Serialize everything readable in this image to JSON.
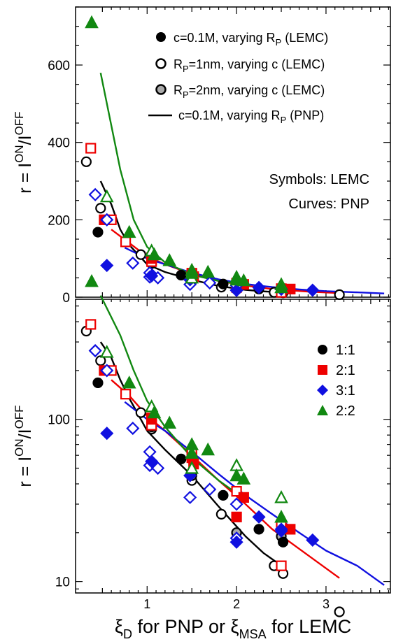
{
  "chart_data": [
    {
      "type": "scatter",
      "panel": "top",
      "yscale": "linear",
      "ylim": [
        0,
        750
      ],
      "xlim": [
        0.2,
        3.72
      ],
      "ylabel_parts": {
        "base": "r = I",
        "sup1": "ON",
        "slash": "/I",
        "sup2": "OFF"
      },
      "yticks": [
        0,
        200,
        400,
        600
      ],
      "ytick_labels": [
        "0",
        "200",
        "400",
        "600"
      ],
      "xticks": [
        1,
        2,
        3
      ],
      "legend_position": "top-right",
      "legend": [
        {
          "marker": "filled-circle",
          "parts": [
            "c=0.1M, varying R",
            "P",
            " (LEMC)"
          ]
        },
        {
          "marker": "open-circle",
          "parts": [
            "R",
            "P",
            "=1nm, varying c (LEMC)"
          ]
        },
        {
          "marker": "gray-circle",
          "parts": [
            "R",
            "P",
            "=2nm, varying c (LEMC)"
          ]
        },
        {
          "marker": "line",
          "parts": [
            "c=0.1M, varying R",
            "P",
            " (PNP)"
          ]
        }
      ],
      "annotations": [
        "Symbols: LEMC",
        "Curves: PNP"
      ]
    },
    {
      "type": "scatter",
      "panel": "bottom",
      "yscale": "log",
      "ylim": [
        8.5,
        550
      ],
      "xlim": [
        0.2,
        3.72
      ],
      "ylabel_parts": {
        "base": "r = I",
        "sup1": "ON",
        "slash": "/I",
        "sup2": "OFF"
      },
      "yticks": [
        10,
        100
      ],
      "ytick_labels": [
        "10",
        "100"
      ],
      "xticks": [
        1,
        2,
        3
      ],
      "xtick_labels": [
        "1",
        "2",
        "3"
      ],
      "xlabel_parts": {
        "a": "ξ",
        "a_sub": "D",
        "b": " for PNP or ξ",
        "b_sub": "MSA",
        "c": " for LEMC"
      },
      "legend_position": "top-right",
      "legend": [
        {
          "name": "1:1",
          "color": "#000000",
          "marker": "circle"
        },
        {
          "name": "2:1",
          "color": "#ee0000",
          "marker": "square"
        },
        {
          "name": "3:1",
          "color": "#1010e0",
          "marker": "diamond"
        },
        {
          "name": "2:2",
          "color": "#118811",
          "marker": "triangle"
        }
      ]
    }
  ],
  "series": [
    {
      "color": "#000000",
      "marker": "circle",
      "curve": [
        [
          0.48,
          300
        ],
        [
          0.6,
          240
        ],
        [
          0.7,
          175
        ],
        [
          0.8,
          135
        ],
        [
          1.0,
          85
        ],
        [
          1.2,
          65
        ],
        [
          1.5,
          45
        ],
        [
          1.8,
          29
        ],
        [
          2.1,
          19
        ],
        [
          2.3,
          15
        ],
        [
          2.55,
          12
        ]
      ],
      "filled": [
        [
          0.45,
          168
        ],
        [
          1.05,
          90
        ],
        [
          1.38,
          57
        ],
        [
          1.85,
          34
        ],
        [
          2.25,
          21
        ],
        [
          2.52,
          17.5
        ]
      ],
      "open": [
        [
          0.32,
          350
        ],
        [
          0.48,
          230
        ],
        [
          0.93,
          110
        ],
        [
          1.05,
          88
        ],
        [
          1.5,
          42
        ],
        [
          1.83,
          26
        ],
        [
          2.0,
          20
        ],
        [
          2.42,
          12.5
        ],
        [
          2.52,
          11.2
        ],
        [
          3.15,
          6.5
        ]
      ],
      "gray": [
        [
          1.05,
          87
        ],
        [
          1.5,
          45
        ],
        [
          2.0,
          20
        ],
        [
          2.5,
          19
        ]
      ]
    },
    {
      "color": "#ee0000",
      "marker": "square",
      "curve": [
        [
          0.6,
          175
        ],
        [
          0.8,
          140
        ],
        [
          1.0,
          105
        ],
        [
          1.2,
          85
        ],
        [
          1.5,
          60
        ],
        [
          1.8,
          42
        ],
        [
          2.1,
          30
        ],
        [
          2.4,
          21
        ],
        [
          2.8,
          14.5
        ],
        [
          3.15,
          10.5
        ]
      ],
      "filled": [
        [
          0.52,
          200
        ],
        [
          1.05,
          100
        ],
        [
          1.52,
          53
        ],
        [
          2.08,
          33
        ],
        [
          2.6,
          21
        ]
      ],
      "open": [
        [
          0.37,
          385
        ],
        [
          0.6,
          200
        ],
        [
          0.76,
          143
        ],
        [
          1.05,
          92
        ],
        [
          1.5,
          62
        ],
        [
          2.0,
          36
        ],
        [
          2.5,
          22
        ],
        [
          2.5,
          12.5
        ]
      ],
      "gray": [
        [
          1.05,
          102
        ],
        [
          1.5,
          58
        ],
        [
          2.0,
          25
        ]
      ]
    },
    {
      "color": "#1010e0",
      "marker": "diamond",
      "curve": [
        [
          0.75,
          128
        ],
        [
          1.0,
          100
        ],
        [
          1.2,
          85
        ],
        [
          1.5,
          63
        ],
        [
          1.8,
          46
        ],
        [
          2.1,
          34
        ],
        [
          2.4,
          26
        ],
        [
          2.7,
          20
        ],
        [
          3.0,
          15.5
        ],
        [
          3.35,
          12.5
        ],
        [
          3.65,
          9.5
        ]
      ],
      "filled": [
        [
          0.55,
          82
        ],
        [
          1.48,
          45
        ],
        [
          2.25,
          25
        ],
        [
          2.85,
          18
        ]
      ],
      "open": [
        [
          0.42,
          265
        ],
        [
          0.55,
          200
        ],
        [
          0.84,
          88
        ],
        [
          1.03,
          63
        ],
        [
          1.03,
          52
        ],
        [
          1.12,
          50
        ],
        [
          1.48,
          33
        ],
        [
          1.7,
          37
        ],
        [
          2.0,
          18.5
        ],
        [
          2.0,
          30
        ],
        [
          2.5,
          20.5
        ]
      ],
      "gray": [
        [
          1.05,
          55
        ],
        [
          2.0,
          17.5
        ],
        [
          2.5,
          21
        ]
      ]
    },
    {
      "color": "#118811",
      "marker": "triangle",
      "curve": [
        [
          0.48,
          580
        ],
        [
          0.7,
          330
        ],
        [
          0.85,
          200
        ],
        [
          1.0,
          130
        ],
        [
          1.2,
          90
        ],
        [
          1.5,
          58
        ],
        [
          1.8,
          42
        ],
        [
          2.1,
          32
        ]
      ],
      "filled": [
        [
          0.38,
          710
        ],
        [
          0.8,
          168
        ],
        [
          1.25,
          95
        ],
        [
          1.5,
          70
        ],
        [
          1.68,
          65
        ],
        [
          2.08,
          43
        ]
      ],
      "open": [
        [
          0.55,
          260
        ],
        [
          1.05,
          120
        ],
        [
          1.5,
          50
        ],
        [
          2.0,
          52
        ],
        [
          2.5,
          33
        ]
      ],
      "gray": [
        [
          1.08,
          110
        ],
        [
          1.5,
          62
        ],
        [
          2.0,
          45
        ],
        [
          2.5,
          25
        ]
      ]
    }
  ]
}
